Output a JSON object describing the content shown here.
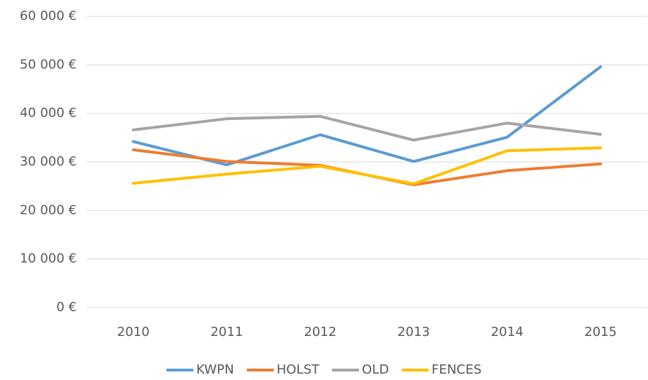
{
  "chart_data": {
    "type": "line",
    "categories": [
      "2010",
      "2011",
      "2012",
      "2013",
      "2014",
      "2015"
    ],
    "series": [
      {
        "name": "KWPN",
        "color": "#5b9bd5",
        "values": [
          34200,
          29400,
          35600,
          30100,
          35100,
          49600
        ]
      },
      {
        "name": "HOLST",
        "color": "#ed7d31",
        "values": [
          32500,
          30100,
          29300,
          25300,
          28200,
          29600
        ]
      },
      {
        "name": "OLD",
        "color": "#a5a5a5",
        "values": [
          36600,
          38900,
          39400,
          34500,
          38000,
          35700
        ]
      },
      {
        "name": "FENCES",
        "color": "#ffc000",
        "values": [
          25600,
          27500,
          29100,
          25500,
          32300,
          32900
        ]
      }
    ],
    "ylim": [
      0,
      60000
    ],
    "yticks": [
      {
        "value": 0,
        "label": "0 €"
      },
      {
        "value": 10000,
        "label": "10 000 €"
      },
      {
        "value": 20000,
        "label": "20 000 €"
      },
      {
        "value": 30000,
        "label": "30 000 €"
      },
      {
        "value": 40000,
        "label": "40 000 €"
      },
      {
        "value": 50000,
        "label": "50 000 €"
      },
      {
        "value": 60000,
        "label": "60 000 €"
      }
    ],
    "grid": true,
    "legend": "bottom"
  }
}
